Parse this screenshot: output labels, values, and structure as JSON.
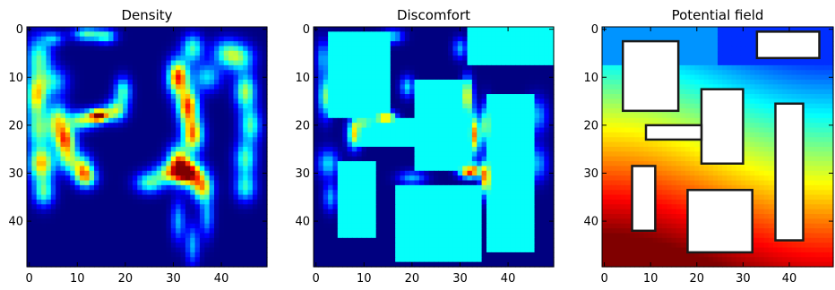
{
  "chart_data": [
    {
      "type": "heatmap",
      "title": "Density",
      "xlim": [
        0,
        49
      ],
      "ylim": [
        49,
        0
      ],
      "xticks": [
        0,
        10,
        20,
        30,
        40
      ],
      "yticks": [
        0,
        10,
        20,
        30,
        40
      ],
      "colormap": "jet",
      "background_value": 0,
      "hotspots": [
        {
          "x": 2,
          "y": 6,
          "value": 0.45,
          "sx": 1.8,
          "sy": 3.0
        },
        {
          "x": 1.5,
          "y": 14,
          "value": 0.65,
          "sx": 1.5,
          "sy": 3.0
        },
        {
          "x": 2,
          "y": 21,
          "value": 0.45,
          "sx": 1.8,
          "sy": 2.5
        },
        {
          "x": 2.5,
          "y": 28,
          "value": 0.7,
          "sx": 1.8,
          "sy": 2.5
        },
        {
          "x": 3,
          "y": 34,
          "value": 0.45,
          "sx": 1.5,
          "sy": 2.0
        },
        {
          "x": 5,
          "y": 11,
          "value": 0.35,
          "sx": 2.0,
          "sy": 2.0
        },
        {
          "x": 6,
          "y": 19,
          "value": 0.55,
          "sx": 1.5,
          "sy": 2.5
        },
        {
          "x": 7.5,
          "y": 23,
          "value": 0.7,
          "sx": 1.5,
          "sy": 2.0
        },
        {
          "x": 8,
          "y": 27,
          "value": 0.45,
          "sx": 1.5,
          "sy": 2.0
        },
        {
          "x": 11,
          "y": 29,
          "value": 0.55,
          "sx": 1.5,
          "sy": 2.0
        },
        {
          "x": 12,
          "y": 31,
          "value": 0.45,
          "sx": 1.5,
          "sy": 1.5
        },
        {
          "x": 11,
          "y": 19,
          "value": 0.55,
          "sx": 2.0,
          "sy": 1.3
        },
        {
          "x": 14.5,
          "y": 18,
          "value": 0.95,
          "sx": 1.4,
          "sy": 1.0
        },
        {
          "x": 18,
          "y": 17,
          "value": 0.55,
          "sx": 1.5,
          "sy": 1.5
        },
        {
          "x": 19.5,
          "y": 13,
          "value": 0.45,
          "sx": 1.2,
          "sy": 2.0
        },
        {
          "x": 12,
          "y": 1,
          "value": 0.45,
          "sx": 2.0,
          "sy": 1.0
        },
        {
          "x": 16,
          "y": 1.5,
          "value": 0.4,
          "sx": 1.5,
          "sy": 1.0
        },
        {
          "x": 5,
          "y": 2,
          "value": 0.3,
          "sx": 1.5,
          "sy": 1.0
        },
        {
          "x": 25,
          "y": 32,
          "value": 0.45,
          "sx": 2.0,
          "sy": 1.5
        },
        {
          "x": 29,
          "y": 30,
          "value": 0.5,
          "sx": 2.0,
          "sy": 1.5
        },
        {
          "x": 31,
          "y": 10,
          "value": 0.85,
          "sx": 1.5,
          "sy": 2.5
        },
        {
          "x": 33,
          "y": 16,
          "value": 0.8,
          "sx": 1.5,
          "sy": 2.5
        },
        {
          "x": 34,
          "y": 22,
          "value": 0.75,
          "sx": 1.5,
          "sy": 2.5
        },
        {
          "x": 33,
          "y": 30,
          "value": 1.0,
          "sx": 2.0,
          "sy": 1.8
        },
        {
          "x": 31,
          "y": 27,
          "value": 0.6,
          "sx": 1.5,
          "sy": 2.0
        },
        {
          "x": 36,
          "y": 33,
          "value": 0.65,
          "sx": 1.5,
          "sy": 2.0
        },
        {
          "x": 34,
          "y": 4,
          "value": 0.45,
          "sx": 1.5,
          "sy": 2.0
        },
        {
          "x": 37,
          "y": 10,
          "value": 0.35,
          "sx": 2.0,
          "sy": 2.0
        },
        {
          "x": 41,
          "y": 5,
          "value": 0.4,
          "sx": 2.0,
          "sy": 2.0
        },
        {
          "x": 44,
          "y": 6,
          "value": 0.4,
          "sx": 2.0,
          "sy": 2.0
        },
        {
          "x": 45,
          "y": 13,
          "value": 0.55,
          "sx": 1.5,
          "sy": 2.5
        },
        {
          "x": 46,
          "y": 20,
          "value": 0.45,
          "sx": 1.5,
          "sy": 2.5
        },
        {
          "x": 45,
          "y": 27,
          "value": 0.45,
          "sx": 1.5,
          "sy": 2.5
        },
        {
          "x": 45,
          "y": 33,
          "value": 0.4,
          "sx": 1.5,
          "sy": 2.0
        },
        {
          "x": 31,
          "y": 40,
          "value": 0.3,
          "sx": 1.0,
          "sy": 3.0
        },
        {
          "x": 34,
          "y": 45,
          "value": 0.3,
          "sx": 1.0,
          "sy": 3.0
        },
        {
          "x": 37,
          "y": 39,
          "value": 0.3,
          "sx": 1.0,
          "sy": 3.0
        }
      ]
    },
    {
      "type": "heatmap",
      "title": "Discomfort",
      "xlim": [
        0,
        49
      ],
      "ylim": [
        49,
        0
      ],
      "xticks": [
        0,
        10,
        20,
        30,
        40
      ],
      "yticks": [
        0,
        10,
        20,
        30,
        40
      ],
      "colormap": "jet",
      "background_value": 0,
      "obstacle_value": 0.38,
      "obstacles": [
        {
          "x0": 3,
          "x1": 15,
          "y0": 0.5,
          "y1": 18
        },
        {
          "x0": 32,
          "x1": 49,
          "y0": -0.5,
          "y1": 7
        },
        {
          "x0": 21,
          "x1": 32,
          "y0": 11,
          "y1": 29
        },
        {
          "x0": 9,
          "x1": 22,
          "y0": 19,
          "y1": 24
        },
        {
          "x0": 36,
          "x1": 45,
          "y0": 14,
          "y1": 46
        },
        {
          "x0": 5,
          "x1": 12,
          "y0": 28,
          "y1": 43
        },
        {
          "x0": 17,
          "x1": 34,
          "y0": 33,
          "y1": 48
        }
      ],
      "hotspots": [
        {
          "x": 14.5,
          "y": 18.5,
          "value": 0.95,
          "sx": 1.4,
          "sy": 0.9
        },
        {
          "x": 10,
          "y": 19.5,
          "value": 0.5,
          "sx": 1.5,
          "sy": 1.0
        },
        {
          "x": 31.5,
          "y": 14,
          "value": 0.8,
          "sx": 0.8,
          "sy": 2.5
        },
        {
          "x": 33,
          "y": 22,
          "value": 0.75,
          "sx": 0.8,
          "sy": 3.0
        },
        {
          "x": 32,
          "y": 29.5,
          "value": 0.95,
          "sx": 1.5,
          "sy": 1.0
        },
        {
          "x": 35.5,
          "y": 31,
          "value": 0.85,
          "sx": 0.8,
          "sy": 2.5
        },
        {
          "x": 35.5,
          "y": 20,
          "value": 0.55,
          "sx": 0.8,
          "sy": 3.0
        },
        {
          "x": 8,
          "y": 22,
          "value": 0.65,
          "sx": 1.0,
          "sy": 2.0
        },
        {
          "x": 2,
          "y": 14,
          "value": 0.5,
          "sx": 1.0,
          "sy": 3.0
        },
        {
          "x": 1.5,
          "y": 6,
          "value": 0.3,
          "sx": 1.0,
          "sy": 2.5
        },
        {
          "x": 2.5,
          "y": 28,
          "value": 0.35,
          "sx": 1.5,
          "sy": 2.0
        },
        {
          "x": 3,
          "y": 35,
          "value": 0.3,
          "sx": 1.0,
          "sy": 2.0
        },
        {
          "x": 16,
          "y": 1.5,
          "value": 0.35,
          "sx": 1.5,
          "sy": 1.0
        },
        {
          "x": 19,
          "y": 12,
          "value": 0.35,
          "sx": 1.0,
          "sy": 1.5
        },
        {
          "x": 20,
          "y": 31,
          "value": 0.3,
          "sx": 2.0,
          "sy": 1.0
        },
        {
          "x": 30,
          "y": 4,
          "value": 0.3,
          "sx": 1.0,
          "sy": 1.5
        },
        {
          "x": 46,
          "y": 18,
          "value": 0.3,
          "sx": 1.5,
          "sy": 2.5
        },
        {
          "x": 46,
          "y": 28,
          "value": 0.3,
          "sx": 1.5,
          "sy": 2.5
        }
      ]
    },
    {
      "type": "heatmap",
      "title": "Potential field",
      "xlim": [
        0,
        49
      ],
      "ylim": [
        49,
        0
      ],
      "xticks": [
        0,
        10,
        20,
        30,
        40
      ],
      "yticks": [
        0,
        10,
        20,
        30,
        40
      ],
      "colormap": "jet",
      "value_gradient": "low at top, rising to high at bottom",
      "obstacle_color": "#ffffff",
      "obstacles": [
        {
          "x0": 4,
          "x1": 16,
          "y0": 2.5,
          "y1": 17
        },
        {
          "x0": 33,
          "x1": 46.5,
          "y0": 0.5,
          "y1": 6
        },
        {
          "x0": 21,
          "x1": 30,
          "y0": 12.5,
          "y1": 28
        },
        {
          "x0": 9,
          "x1": 21,
          "y0": 20,
          "y1": 23
        },
        {
          "x0": 37,
          "x1": 43,
          "y0": 15.5,
          "y1": 44
        },
        {
          "x0": 6,
          "x1": 11,
          "y0": 28.5,
          "y1": 42
        },
        {
          "x0": 18,
          "x1": 32,
          "y0": 33.5,
          "y1": 46.5
        }
      ]
    }
  ]
}
